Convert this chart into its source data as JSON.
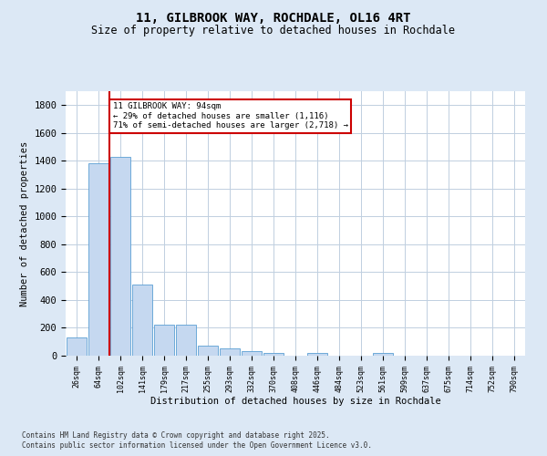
{
  "title_line1": "11, GILBROOK WAY, ROCHDALE, OL16 4RT",
  "title_line2": "Size of property relative to detached houses in Rochdale",
  "xlabel": "Distribution of detached houses by size in Rochdale",
  "ylabel": "Number of detached properties",
  "categories": [
    "26sqm",
    "64sqm",
    "102sqm",
    "141sqm",
    "179sqm",
    "217sqm",
    "255sqm",
    "293sqm",
    "332sqm",
    "370sqm",
    "408sqm",
    "446sqm",
    "484sqm",
    "523sqm",
    "561sqm",
    "599sqm",
    "637sqm",
    "675sqm",
    "714sqm",
    "752sqm",
    "790sqm"
  ],
  "values": [
    130,
    1380,
    1430,
    510,
    220,
    220,
    75,
    50,
    30,
    20,
    0,
    20,
    0,
    0,
    20,
    0,
    0,
    0,
    0,
    0,
    0
  ],
  "bar_color": "#c5d8f0",
  "bar_edge_color": "#5a9fd4",
  "vline_color": "#cc0000",
  "annotation_text": "11 GILBROOK WAY: 94sqm\n← 29% of detached houses are smaller (1,116)\n71% of semi-detached houses are larger (2,718) →",
  "annotation_box_color": "#ffffff",
  "annotation_box_edge": "#cc0000",
  "ylim": [
    0,
    1900
  ],
  "yticks": [
    0,
    200,
    400,
    600,
    800,
    1000,
    1200,
    1400,
    1600,
    1800
  ],
  "footnote_line1": "Contains HM Land Registry data © Crown copyright and database right 2025.",
  "footnote_line2": "Contains public sector information licensed under the Open Government Licence v3.0.",
  "background_color": "#dce8f5",
  "plot_background": "#ffffff",
  "grid_color": "#c0cfe0"
}
